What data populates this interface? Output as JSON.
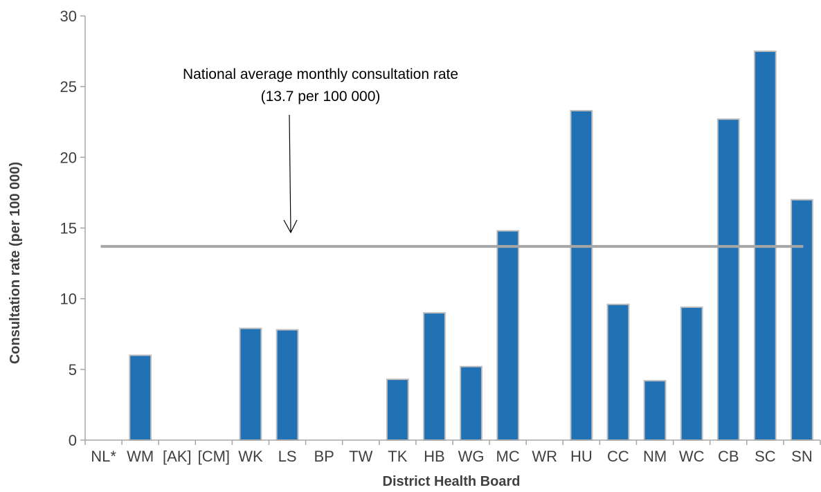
{
  "chart_data": {
    "type": "bar",
    "xlabel": "District Health Board",
    "ylabel": "Consultation rate (per 100 000)",
    "ylim": [
      0,
      30
    ],
    "yticks": [
      0,
      5,
      10,
      15,
      20,
      25,
      30
    ],
    "categories": [
      "NL*",
      "WM",
      "[AK]",
      "[CM]",
      "WK",
      "LS",
      "BP",
      "TW",
      "TK",
      "HB",
      "WG",
      "MC",
      "WR",
      "HU",
      "CC",
      "NM",
      "WC",
      "CB",
      "SC",
      "SN"
    ],
    "values": [
      0,
      6.0,
      0,
      0,
      7.9,
      7.8,
      0,
      0,
      4.3,
      9.0,
      5.2,
      14.8,
      0,
      23.3,
      9.6,
      4.2,
      9.4,
      22.7,
      27.5,
      17.0
    ],
    "reference_line": {
      "value": 13.7,
      "label_line1": "National average monthly consultation rate",
      "label_line2": "(13.7 per 100 000)"
    },
    "grid": false,
    "legend": "none",
    "colors": {
      "bar": "#2171b5",
      "bar_border": "#bdbdbd",
      "reference_line": "#a6a6a6",
      "axis": "#a6a6a6",
      "text": "#404040"
    }
  }
}
